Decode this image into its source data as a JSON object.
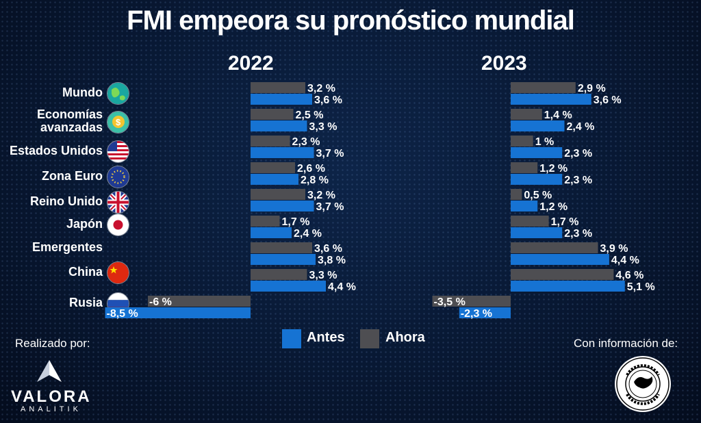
{
  "title": "FMI empeora su pronóstico mundial",
  "legend": [
    {
      "label": "Antes",
      "color": "#1673d3"
    },
    {
      "label": "Ahora",
      "color": "#4e4e52"
    }
  ],
  "flags": [
    "globe-icon",
    "coins-icon",
    "flag-usa-icon",
    "flag-eu-icon",
    "flag-uk-icon",
    "flag-japan-icon",
    "",
    "flag-china-icon",
    "flag-russia-icon"
  ],
  "credits": {
    "left": "Realizado por:",
    "brand": "VALORA",
    "brand_sub": "ANALITIK",
    "right": "Con información de:"
  },
  "chart_data": [
    {
      "type": "bar",
      "title": "2022",
      "categories": [
        "Mundo",
        "Economías avanzadas",
        "Estados Unidos",
        "Zona Euro",
        "Reino Unido",
        "Japón",
        "Emergentes",
        "China",
        "Rusia"
      ],
      "series": [
        {
          "name": "Ahora",
          "values": [
            3.2,
            2.5,
            2.3,
            2.6,
            3.2,
            1.7,
            3.6,
            3.3,
            -6
          ],
          "labels": [
            "3,2 %",
            "2,5 %",
            "2,3 %",
            "2,6 %",
            "3,2 %",
            "1,7 %",
            "3,6 %",
            "3,3 %",
            "-6 %"
          ]
        },
        {
          "name": "Antes",
          "values": [
            3.6,
            3.3,
            3.7,
            2.8,
            3.7,
            2.4,
            3.8,
            4.4,
            -8.5
          ],
          "labels": [
            "3,6 %",
            "3,3 %",
            "3,7 %",
            "2,8 %",
            "3,7 %",
            "2,4 %",
            "3,8 %",
            "4,4 %",
            "-8,5 %"
          ]
        }
      ]
    },
    {
      "type": "bar",
      "title": "2023",
      "categories": [
        "Mundo",
        "Economías avanzadas",
        "Estados Unidos",
        "Zona Euro",
        "Reino Unido",
        "Japón",
        "Emergentes",
        "China",
        "Rusia"
      ],
      "series": [
        {
          "name": "Ahora",
          "values": [
            2.9,
            1.4,
            1,
            1.2,
            0.5,
            1.7,
            3.9,
            4.6,
            -3.5
          ],
          "labels": [
            "2,9 %",
            "1,4 %",
            "1 %",
            "1,2 %",
            "0,5 %",
            "1,7 %",
            "3,9 %",
            "4,6 %",
            "-3,5 %"
          ]
        },
        {
          "name": "Antes",
          "values": [
            3.6,
            2.4,
            2.3,
            2.3,
            1.2,
            2.3,
            4.4,
            5.1,
            -2.3
          ],
          "labels": [
            "3,6 %",
            "2,4 %",
            "2,3 %",
            "2,3 %",
            "1,2 %",
            "2,3 %",
            "4,4 %",
            "5,1 %",
            "-2,3 %"
          ]
        }
      ]
    }
  ]
}
